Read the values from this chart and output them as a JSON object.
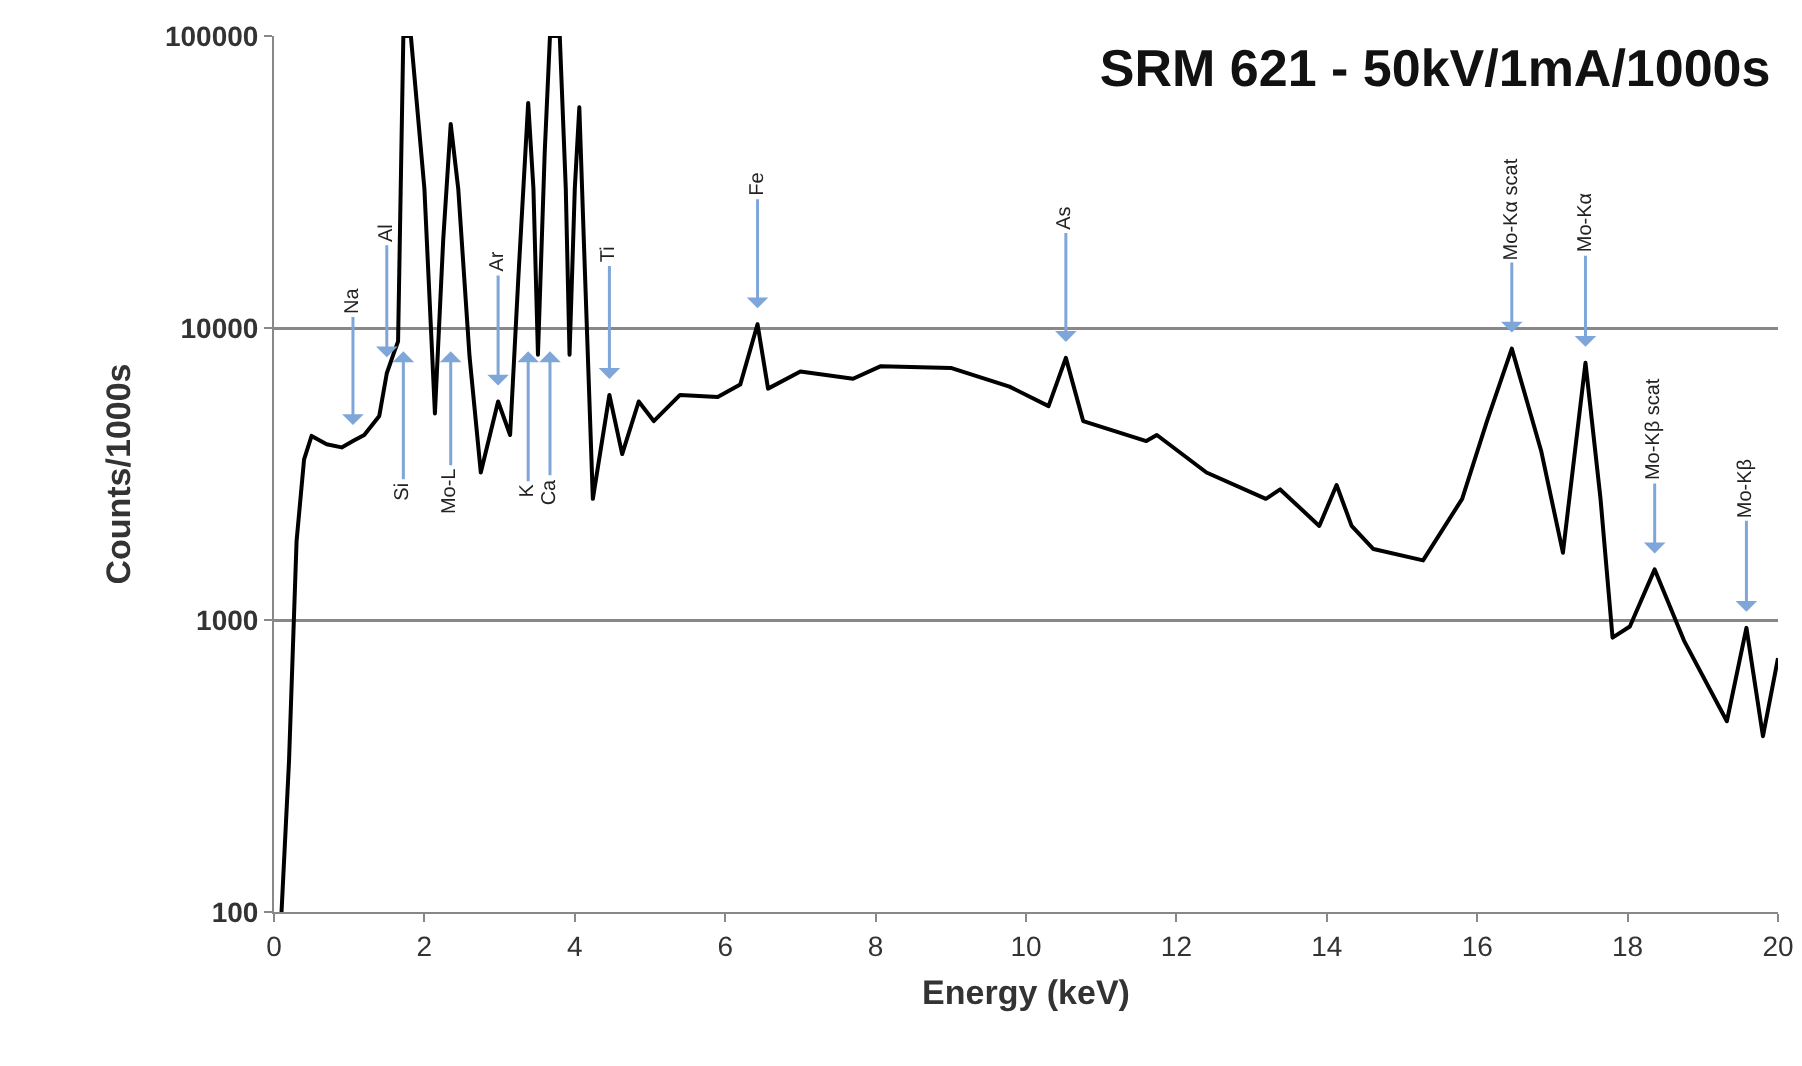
{
  "chart_data": {
    "type": "line",
    "title": "SRM 621 - 50kV/1mA/1000s",
    "xlabel": "Energy (keV)",
    "ylabel": "Counts/1000s",
    "x": [
      0.1,
      0.2,
      0.3,
      0.4,
      0.5,
      0.7,
      0.9,
      1.05,
      1.2,
      1.4,
      1.5,
      1.6,
      1.65,
      1.72,
      1.82,
      2.0,
      2.14,
      2.25,
      2.35,
      2.45,
      2.6,
      2.75,
      2.98,
      3.14,
      3.25,
      3.38,
      3.45,
      3.51,
      3.6,
      3.67,
      3.8,
      3.88,
      3.93,
      4.0,
      4.06,
      4.12,
      4.24,
      4.46,
      4.63,
      4.85,
      5.05,
      5.4,
      5.9,
      6.2,
      6.43,
      6.57,
      7.0,
      7.7,
      8.07,
      9.0,
      9.78,
      10.3,
      10.53,
      10.76,
      11.6,
      11.74,
      12.4,
      13.19,
      13.38,
      13.9,
      14.13,
      14.33,
      14.62,
      15.28,
      15.8,
      16.13,
      16.46,
      16.85,
      17.14,
      17.44,
      17.64,
      17.8,
      18.03,
      18.36,
      18.75,
      19.32,
      19.58,
      19.8,
      20
    ],
    "series": [
      {
        "color": "#000000",
        "values": [
          100,
          330,
          1860,
          3550,
          4270,
          4000,
          3900,
          4100,
          4300,
          5000,
          7000,
          8300,
          9000,
          100000,
          100000,
          30000,
          5100,
          20000,
          50000,
          30000,
          8000,
          3200,
          5600,
          4300,
          15000,
          59000,
          30000,
          8100,
          40000,
          100000,
          100000,
          30000,
          8100,
          30000,
          57000,
          20000,
          2600,
          5900,
          3700,
          5600,
          4800,
          5900,
          5800,
          6400,
          10300,
          6200,
          7100,
          6700,
          7400,
          7300,
          6300,
          5400,
          7900,
          4800,
          4100,
          4300,
          3200,
          2600,
          2800,
          2100,
          2900,
          2100,
          1750,
          1600,
          2600,
          4800,
          8500,
          3800,
          1700,
          7600,
          2600,
          870,
          950,
          1490,
          850,
          450,
          940,
          400,
          740
        ]
      }
    ],
    "log": "y",
    "xlim": [
      0,
      20
    ],
    "xticks": [
      0,
      2,
      4,
      6,
      8,
      10,
      12,
      14,
      16,
      18,
      20
    ],
    "ylim": [
      100,
      100000
    ],
    "yticks": [
      100,
      1000,
      10000,
      100000
    ],
    "grid": "y",
    "marker": "none",
    "line_style": "solid",
    "annotations": [
      {
        "text": "Na",
        "x": 1.05,
        "y": 4100
      },
      {
        "text": "Al",
        "x": 1.5,
        "y": 7000
      },
      {
        "text": "Si",
        "x": 1.72,
        "y": 100000
      },
      {
        "text": "Mo-L",
        "x": 2.35,
        "y": 50000
      },
      {
        "text": "Ar",
        "x": 2.98,
        "y": 5600
      },
      {
        "text": "K",
        "x": 3.38,
        "y": 59000
      },
      {
        "text": "Ca",
        "x": 3.67,
        "y": 100000
      },
      {
        "text": "Ti",
        "x": 4.46,
        "y": 5900
      },
      {
        "text": "Fe",
        "x": 6.43,
        "y": 10300
      },
      {
        "text": "As",
        "x": 10.53,
        "y": 7900
      },
      {
        "text": "Mo-Kα scat",
        "x": 16.46,
        "y": 8500
      },
      {
        "text": "Mo-Kα",
        "x": 17.44,
        "y": 7600
      },
      {
        "text": "Mo-Kβ scat",
        "x": 18.36,
        "y": 1490
      },
      {
        "text": "Mo-Kβ",
        "x": 19.58,
        "y": 940
      }
    ]
  }
}
